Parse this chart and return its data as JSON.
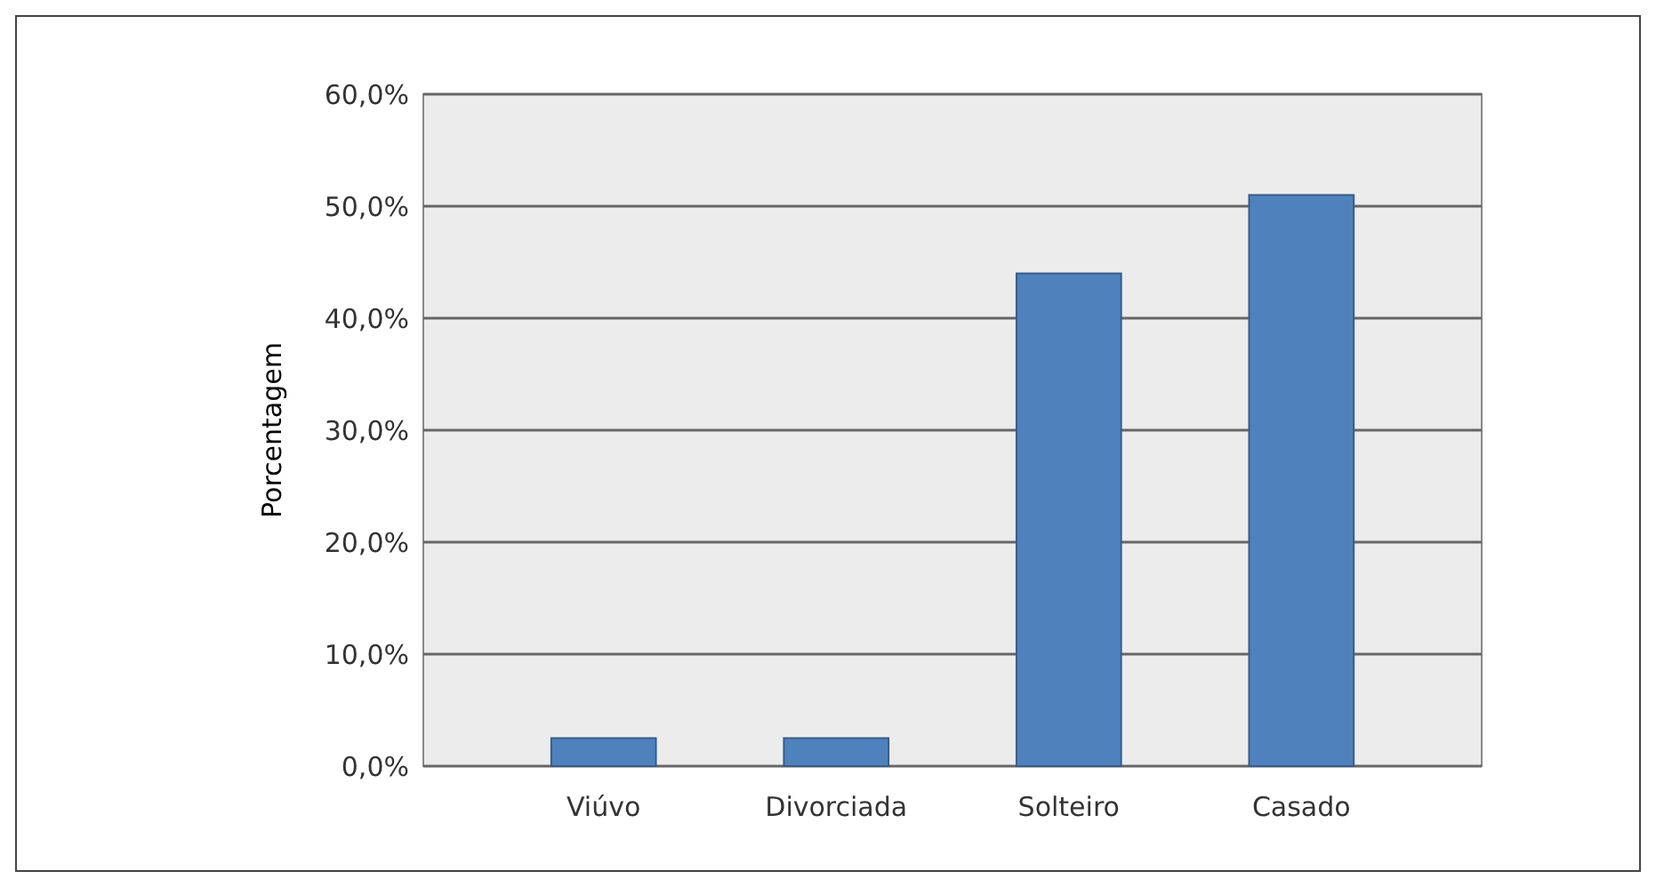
{
  "chart_data": {
    "type": "bar",
    "ylabel": "Porcentagem",
    "categories": [
      "Viúvo",
      "Divorciada",
      "Solteiro",
      "Casado"
    ],
    "values": [
      2.5,
      2.5,
      44,
      51
    ],
    "color": "#4f81bd",
    "ylim": [
      0,
      60
    ],
    "yticks": [
      {
        "value": 0,
        "label": "0,0%"
      },
      {
        "value": 10,
        "label": "10,0%"
      },
      {
        "value": 20,
        "label": "20,0%"
      },
      {
        "value": 30,
        "label": "30,0%"
      },
      {
        "value": 40,
        "label": "40,0%"
      },
      {
        "value": 50,
        "label": "50,0%"
      },
      {
        "value": 60,
        "label": "60,0%"
      }
    ],
    "grid": "y"
  }
}
